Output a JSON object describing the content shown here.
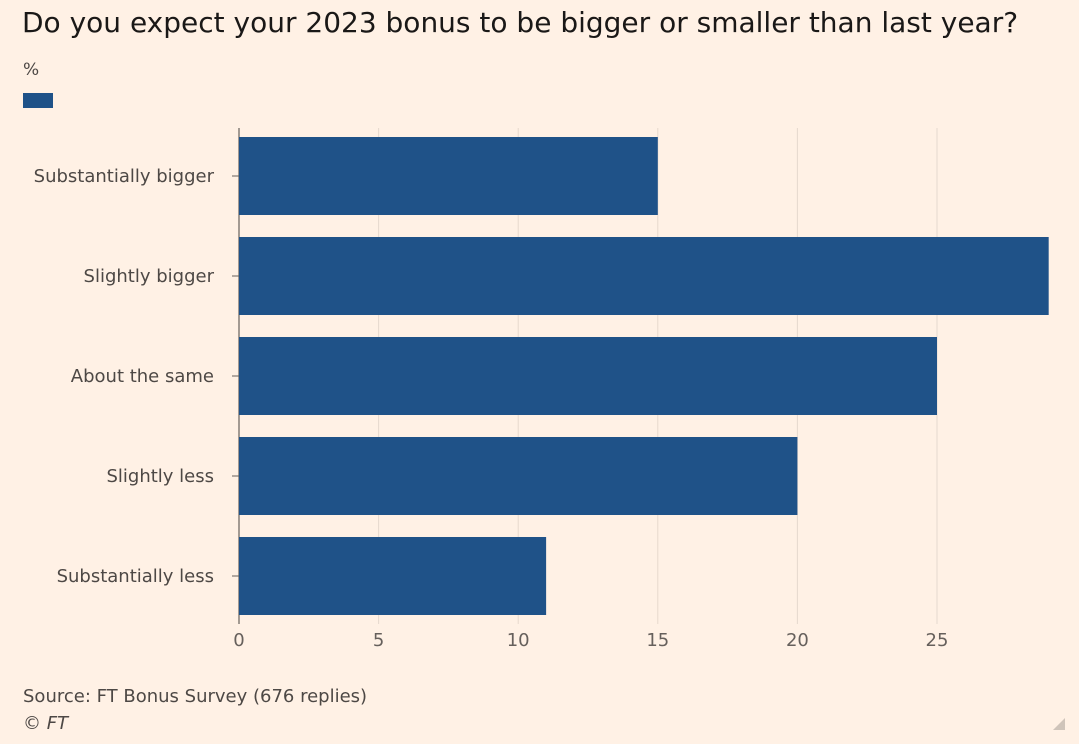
{
  "chart_data": {
    "type": "bar",
    "orientation": "horizontal",
    "title": "Do you expect your 2023 bonus to be bigger or smaller than last year?",
    "unit_label": "%",
    "categories": [
      "Substantially bigger",
      "Slightly bigger",
      "About the same",
      "Slightly less",
      "Substantially less"
    ],
    "values": [
      15,
      29,
      25,
      20,
      11
    ],
    "xlim": [
      0,
      30
    ],
    "xticks": [
      0,
      5,
      10,
      15,
      20,
      25
    ],
    "grid": true,
    "bar_color": "#1f5288"
  },
  "footer": {
    "source": "Source: FT Bonus Survey (676 replies)",
    "credit": "© FT"
  }
}
